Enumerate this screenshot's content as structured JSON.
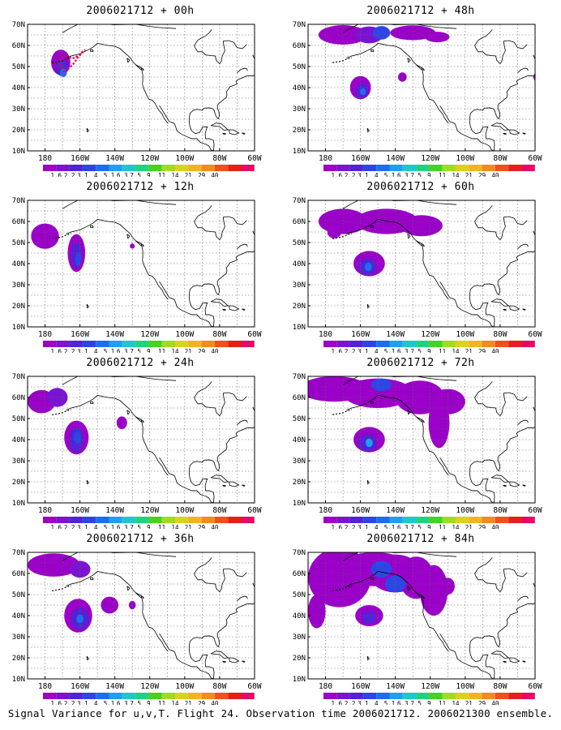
{
  "figure": {
    "footer": "Signal Variance for u,v,T. Flight 24. Observation time 2006021712. 2006021300 ensemble."
  },
  "colorbar": {
    "colors": [
      "#9a00c8",
      "#7a14d2",
      "#5024d6",
      "#2c46e6",
      "#1e6cf0",
      "#1ea0f0",
      "#1ec8c8",
      "#1ed282",
      "#46d21e",
      "#a0dc1e",
      "#dcd21e",
      "#f0b41e",
      "#f08c1e",
      "#f0501e",
      "#e61e1e",
      "#e60a64"
    ],
    "labels": [
      "1.6",
      "2.2",
      "3.1",
      "4",
      "5.1",
      "6.3",
      "7.5",
      "9",
      "11",
      "14",
      "21",
      "29",
      "40"
    ]
  },
  "axes": {
    "x_ticks": [
      "180",
      "160W",
      "140W",
      "120W",
      "100W",
      "80W",
      "60W"
    ],
    "y_ticks": [
      "10N",
      "20N",
      "30N",
      "40N",
      "50N",
      "60N",
      "70N"
    ]
  },
  "panels": [
    {
      "title": "2006021712 + 00h"
    },
    {
      "title": "2006021712 + 48h"
    },
    {
      "title": "2006021712 + 12h"
    },
    {
      "title": "2006021712 + 60h"
    },
    {
      "title": "2006021712 + 24h"
    },
    {
      "title": "2006021712 + 72h"
    },
    {
      "title": "2006021712 + 36h"
    },
    {
      "title": "2006021712 + 84h"
    }
  ]
}
